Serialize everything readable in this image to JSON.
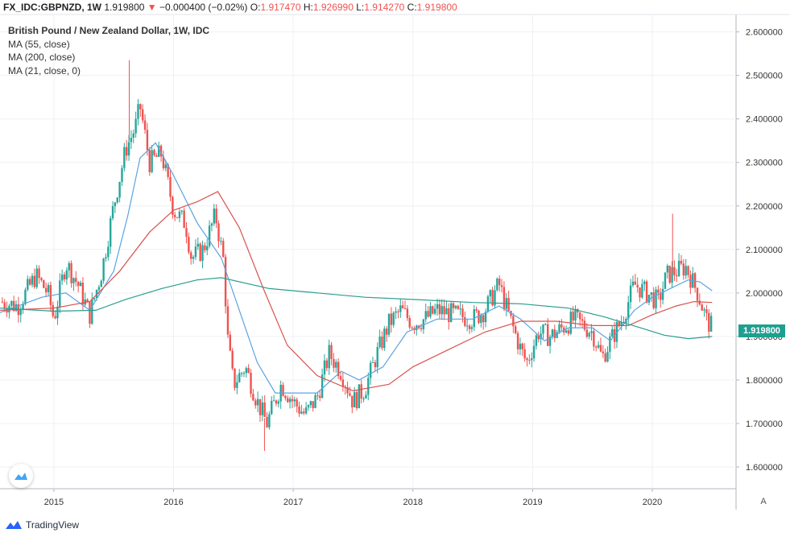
{
  "header": {
    "symbol_text": "FX_IDC:GBPNZD, 1W",
    "last": "1.919800",
    "change_arrow": "▼",
    "change": "−0.000400 (−0.02%)",
    "o_label": "O:",
    "o_value": "1.917470",
    "h_label": "H:",
    "h_value": "1.926990",
    "l_label": "L:",
    "l_value": "1.914270",
    "c_label": "C:",
    "c_value": "1.919800"
  },
  "legend": {
    "title": "British Pound / New Zealand Dollar, 1W, IDC",
    "items": [
      "MA (55, close)",
      "MA (200, close)",
      "MA (21, close, 0)"
    ]
  },
  "price_tag": "1.919800",
  "auto_label": "A",
  "logo_text": "TradingView",
  "colors": {
    "up": "#26a69a",
    "down": "#ef5350",
    "ma21": "#5ba3e0",
    "ma55": "#d9534f",
    "ma200": "#2a9d8f",
    "grid": "#eef0f3"
  },
  "chart_data": {
    "type": "candlestick",
    "title": "British Pound / New Zealand Dollar, 1W, IDC",
    "x_ticks": [
      "2015",
      "2016",
      "2017",
      "2018",
      "2019",
      "2020"
    ],
    "y_ticks": [
      "2.600000",
      "2.500000",
      "2.400000",
      "2.300000",
      "2.200000",
      "2.100000",
      "2.000000",
      "1.900000",
      "1.800000",
      "1.700000",
      "1.600000"
    ],
    "ylim": [
      1.55,
      2.64
    ],
    "xlim": [
      2014.55,
      2020.7
    ],
    "price_path": [
      [
        2014.55,
        1.98
      ],
      [
        2014.7,
        1.97
      ],
      [
        2014.85,
        2.04
      ],
      [
        2014.95,
        2.0
      ],
      [
        2015.0,
        1.94
      ],
      [
        2015.1,
        2.07
      ],
      [
        2015.2,
        2.02
      ],
      [
        2015.3,
        1.95
      ],
      [
        2015.4,
        2.05
      ],
      [
        2015.5,
        2.2
      ],
      [
        2015.6,
        2.33
      ],
      [
        2015.68,
        2.38
      ],
      [
        2015.72,
        2.43
      ],
      [
        2015.8,
        2.3
      ],
      [
        2015.9,
        2.32
      ],
      [
        2016.0,
        2.19
      ],
      [
        2016.1,
        2.16
      ],
      [
        2016.15,
        2.08
      ],
      [
        2016.25,
        2.1
      ],
      [
        2016.35,
        2.18
      ],
      [
        2016.42,
        2.07
      ],
      [
        2016.45,
        1.9
      ],
      [
        2016.5,
        1.79
      ],
      [
        2016.6,
        1.83
      ],
      [
        2016.7,
        1.75
      ],
      [
        2016.78,
        1.7
      ],
      [
        2016.9,
        1.79
      ],
      [
        2017.0,
        1.75
      ],
      [
        2017.1,
        1.72
      ],
      [
        2017.2,
        1.76
      ],
      [
        2017.3,
        1.86
      ],
      [
        2017.4,
        1.82
      ],
      [
        2017.5,
        1.75
      ],
      [
        2017.6,
        1.78
      ],
      [
        2017.7,
        1.86
      ],
      [
        2017.8,
        1.93
      ],
      [
        2017.9,
        1.96
      ],
      [
        2018.0,
        1.93
      ],
      [
        2018.1,
        1.94
      ],
      [
        2018.2,
        1.96
      ],
      [
        2018.35,
        1.95
      ],
      [
        2018.5,
        1.94
      ],
      [
        2018.6,
        1.96
      ],
      [
        2018.72,
        2.02
      ],
      [
        2018.8,
        1.95
      ],
      [
        2018.9,
        1.87
      ],
      [
        2018.95,
        1.84
      ],
      [
        2019.05,
        1.91
      ],
      [
        2019.15,
        1.9
      ],
      [
        2019.25,
        1.92
      ],
      [
        2019.35,
        1.94
      ],
      [
        2019.5,
        1.91
      ],
      [
        2019.58,
        1.85
      ],
      [
        2019.65,
        1.89
      ],
      [
        2019.75,
        1.94
      ],
      [
        2019.85,
        2.02
      ],
      [
        2019.95,
        2.0
      ],
      [
        2020.05,
        1.98
      ],
      [
        2020.12,
        2.04
      ],
      [
        2020.2,
        2.05
      ],
      [
        2020.28,
        2.06
      ],
      [
        2020.38,
        2.0
      ],
      [
        2020.45,
        1.94
      ],
      [
        2020.5,
        1.92
      ]
    ],
    "spikes": [
      [
        2015.63,
        2.535
      ],
      [
        2016.76,
        1.637
      ],
      [
        2020.17,
        2.182
      ]
    ],
    "series": [
      {
        "name": "MA (21, close, 0)",
        "points": [
          [
            2014.55,
            1.955
          ],
          [
            2014.9,
            1.99
          ],
          [
            2015.1,
            2.0
          ],
          [
            2015.3,
            1.96
          ],
          [
            2015.5,
            2.05
          ],
          [
            2015.62,
            2.18
          ],
          [
            2015.72,
            2.31
          ],
          [
            2015.85,
            2.345
          ],
          [
            2016.0,
            2.27
          ],
          [
            2016.2,
            2.16
          ],
          [
            2016.4,
            2.08
          ],
          [
            2016.55,
            1.96
          ],
          [
            2016.7,
            1.84
          ],
          [
            2016.85,
            1.77
          ],
          [
            2017.0,
            1.77
          ],
          [
            2017.2,
            1.77
          ],
          [
            2017.4,
            1.82
          ],
          [
            2017.55,
            1.8
          ],
          [
            2017.75,
            1.83
          ],
          [
            2017.95,
            1.91
          ],
          [
            2018.2,
            1.94
          ],
          [
            2018.5,
            1.94
          ],
          [
            2018.72,
            1.97
          ],
          [
            2018.9,
            1.94
          ],
          [
            2019.1,
            1.89
          ],
          [
            2019.3,
            1.92
          ],
          [
            2019.5,
            1.92
          ],
          [
            2019.65,
            1.89
          ],
          [
            2019.85,
            1.96
          ],
          [
            2020.0,
            1.99
          ],
          [
            2020.15,
            2.01
          ],
          [
            2020.3,
            2.03
          ],
          [
            2020.4,
            2.025
          ],
          [
            2020.5,
            2.005
          ]
        ]
      },
      {
        "name": "MA (55, close)",
        "points": [
          [
            2014.55,
            1.96
          ],
          [
            2015.0,
            1.965
          ],
          [
            2015.3,
            1.98
          ],
          [
            2015.55,
            2.05
          ],
          [
            2015.8,
            2.14
          ],
          [
            2016.0,
            2.19
          ],
          [
            2016.2,
            2.21
          ],
          [
            2016.37,
            2.233
          ],
          [
            2016.55,
            2.15
          ],
          [
            2016.75,
            2.01
          ],
          [
            2016.95,
            1.88
          ],
          [
            2017.2,
            1.81
          ],
          [
            2017.5,
            1.775
          ],
          [
            2017.8,
            1.79
          ],
          [
            2018.0,
            1.83
          ],
          [
            2018.3,
            1.87
          ],
          [
            2018.6,
            1.91
          ],
          [
            2018.9,
            1.935
          ],
          [
            2019.2,
            1.935
          ],
          [
            2019.5,
            1.925
          ],
          [
            2019.8,
            1.925
          ],
          [
            2020.0,
            1.95
          ],
          [
            2020.2,
            1.97
          ],
          [
            2020.35,
            1.98
          ],
          [
            2020.5,
            1.978
          ]
        ]
      },
      {
        "name": "MA (200, close)",
        "points": [
          [
            2014.55,
            1.965
          ],
          [
            2015.0,
            1.958
          ],
          [
            2015.35,
            1.96
          ],
          [
            2015.6,
            1.985
          ],
          [
            2015.9,
            2.01
          ],
          [
            2016.2,
            2.03
          ],
          [
            2016.4,
            2.035
          ],
          [
            2016.8,
            2.01
          ],
          [
            2017.2,
            2.0
          ],
          [
            2017.6,
            1.99
          ],
          [
            2018.0,
            1.985
          ],
          [
            2018.5,
            1.978
          ],
          [
            2018.9,
            1.975
          ],
          [
            2019.3,
            1.965
          ],
          [
            2019.6,
            1.945
          ],
          [
            2019.9,
            1.92
          ],
          [
            2020.1,
            1.903
          ],
          [
            2020.3,
            1.895
          ],
          [
            2020.5,
            1.9
          ]
        ]
      }
    ]
  }
}
